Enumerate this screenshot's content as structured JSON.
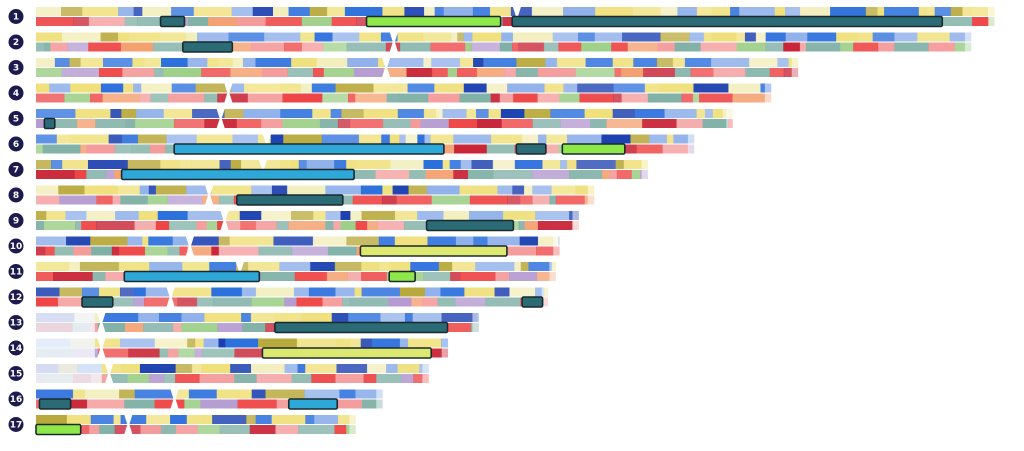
{
  "chart_data": {
    "type": "chromosome-karyogram",
    "chromosomes": [
      {
        "id": "1",
        "length_mb": 249,
        "centromere_mb": 125
      },
      {
        "id": "2",
        "length_mb": 243,
        "centromere_mb": 93
      },
      {
        "id": "3",
        "length_mb": 198,
        "centromere_mb": 91
      },
      {
        "id": "4",
        "length_mb": 191,
        "centromere_mb": 50
      },
      {
        "id": "5",
        "length_mb": 181,
        "centromere_mb": 48
      },
      {
        "id": "6",
        "length_mb": 171,
        "centromere_mb": 60
      },
      {
        "id": "7",
        "length_mb": 159,
        "centromere_mb": 59
      },
      {
        "id": "8",
        "length_mb": 145,
        "centromere_mb": 45
      },
      {
        "id": "9",
        "length_mb": 141,
        "centromere_mb": 49
      },
      {
        "id": "10",
        "length_mb": 136,
        "centromere_mb": 40
      },
      {
        "id": "11",
        "length_mb": 135,
        "centromere_mb": 53
      },
      {
        "id": "12",
        "length_mb": 133,
        "centromere_mb": 35
      },
      {
        "id": "13",
        "length_mb": 115,
        "centromere_mb": 17
      },
      {
        "id": "14",
        "length_mb": 107,
        "centromere_mb": 17
      },
      {
        "id": "15",
        "length_mb": 102,
        "centromere_mb": 19
      },
      {
        "id": "16",
        "length_mb": 90,
        "centromere_mb": 36
      },
      {
        "id": "17",
        "length_mb": 83,
        "centromere_mb": 24
      }
    ],
    "palette": {
      "blue": "#2b6fdc",
      "dark_blue": "#1a3fb0",
      "light_blue": "#8fb0ea",
      "yellow": "#efe07a",
      "olive": "#b8a83a",
      "light_yellow": "#f2eebc",
      "red": "#ee4444",
      "light_red": "#f49a9a",
      "dark_red": "#c82436",
      "teal": "#7fb0a6",
      "green": "#9fd08a",
      "purple": "#b49ad0",
      "orange": "#f4a070",
      "highlight_green": "#8fe84a",
      "highlight_teal": "#2a6b75",
      "highlight_cyan": "#2ea8d8",
      "highlight_lime": "#dce870",
      "label_circle": "#1d1a4e"
    }
  }
}
